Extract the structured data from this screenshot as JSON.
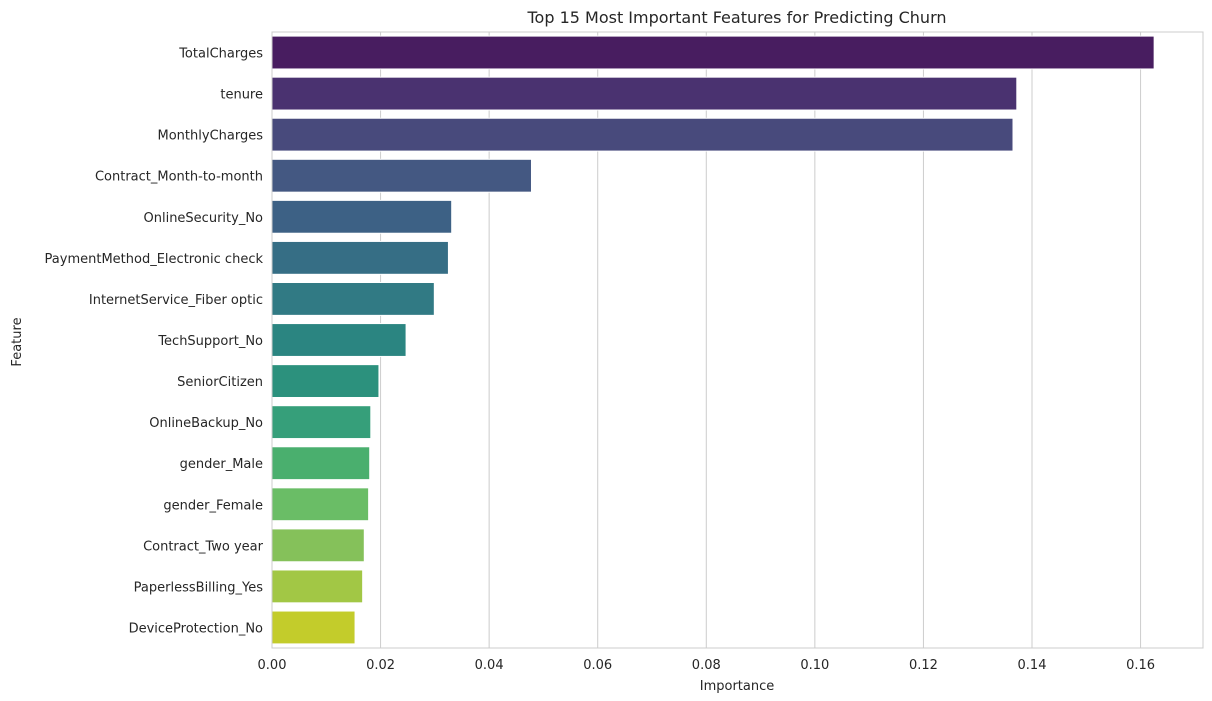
{
  "chart_data": {
    "type": "bar",
    "orientation": "horizontal",
    "title": "Top 15 Most Important Features for Predicting Churn",
    "xlabel": "Importance",
    "ylabel": "Feature",
    "xlim": [
      0,
      0.1715
    ],
    "xticks": [
      0.0,
      0.02,
      0.04,
      0.06,
      0.08,
      0.1,
      0.12,
      0.14,
      0.16
    ],
    "xtick_labels": [
      "0.00",
      "0.02",
      "0.04",
      "0.06",
      "0.08",
      "0.10",
      "0.12",
      "0.14",
      "0.16"
    ],
    "grid": "vertical",
    "categories": [
      "TotalCharges",
      "tenure",
      "MonthlyCharges",
      "Contract_Month-to-month",
      "OnlineSecurity_No",
      "PaymentMethod_Electronic check",
      "InternetService_Fiber optic",
      "TechSupport_No",
      "SeniorCitizen",
      "OnlineBackup_No",
      "gender_Male",
      "gender_Female",
      "Contract_Two year",
      "PaperlessBilling_Yes",
      "DeviceProtection_No"
    ],
    "values": [
      0.1625,
      0.1372,
      0.1365,
      0.0478,
      0.0331,
      0.0325,
      0.0299,
      0.0247,
      0.0197,
      0.0182,
      0.018,
      0.0178,
      0.017,
      0.0167,
      0.0153
    ],
    "colors": [
      "#481d60",
      "#4a3270",
      "#484a7c",
      "#445882",
      "#3d6185",
      "#366e85",
      "#317a84",
      "#2b8581",
      "#2c917d",
      "#369f7a",
      "#4aaf6e",
      "#6abd66",
      "#85c15a",
      "#a2c745",
      "#c3cc2b"
    ]
  }
}
